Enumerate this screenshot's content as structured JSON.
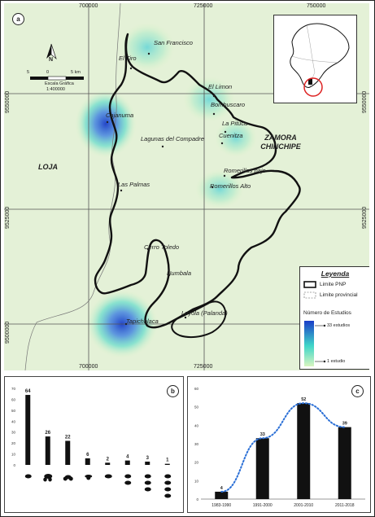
{
  "panel_labels": {
    "a": "a",
    "b": "b",
    "c": "c"
  },
  "map": {
    "x_ticks": [
      "700000",
      "725000",
      "750000"
    ],
    "y_ticks_left": [
      "9550000",
      "9525000",
      "9500000"
    ],
    "y_ticks_right": [
      "9550000",
      "9525000",
      "9500000"
    ],
    "scale": {
      "ticks": [
        "5",
        "0",
        "5 km"
      ],
      "title": "Escala Gráfica",
      "ratio": "1:400000"
    },
    "north_label": "N",
    "regions": [
      {
        "id": "loja",
        "label": "LOJA"
      },
      {
        "id": "zamora",
        "label": "ZAMORA CHINCHIPE"
      }
    ],
    "places": [
      {
        "id": "san-francisco",
        "label": "San Francisco"
      },
      {
        "id": "el-tiro",
        "label": "El Tiro"
      },
      {
        "id": "el-limon",
        "label": "El Limon"
      },
      {
        "id": "bombuscaro",
        "label": "Bombuscaro"
      },
      {
        "id": "cajanuma",
        "label": "Cajanuma"
      },
      {
        "id": "la-pituca",
        "label": "La Pituca"
      },
      {
        "id": "cuenitza",
        "label": "Cuenitza"
      },
      {
        "id": "lagunas",
        "label": "Lagunas del Compadre"
      },
      {
        "id": "romerillos-bajo",
        "label": "Romerillos bajo"
      },
      {
        "id": "romerillos-alto",
        "label": "Romerillos Alto"
      },
      {
        "id": "las-palmas",
        "label": "Las Palmas"
      },
      {
        "id": "cerro-toledo",
        "label": "Cerro Toledo"
      },
      {
        "id": "numbala",
        "label": "Numbala"
      },
      {
        "id": "loyola",
        "label": "Loyola (Palanda)"
      },
      {
        "id": "tapichalaca",
        "label": "Tapichalaca"
      }
    ],
    "hotspots": [
      {
        "place": "san-francisco",
        "intensity": 0.25
      },
      {
        "place": "bombuscaro",
        "intensity": 0.3
      },
      {
        "place": "cajanuma",
        "intensity": 0.55
      },
      {
        "place": "la-pituca",
        "intensity": 0.2
      },
      {
        "place": "romerillos-alto",
        "intensity": 0.2
      },
      {
        "place": "tapichalaca",
        "intensity": 1.0
      }
    ],
    "legend": {
      "title": "Leyenda",
      "items": [
        "Limite PNP",
        "Limite provincial"
      ],
      "gradient_title": "Número de Estudios",
      "gradient_max": "33 estudios",
      "gradient_min": "1 estudio",
      "colors": {
        "low": "#d8f5c0",
        "mid": "#40d6c8",
        "high": "#1a3dc8"
      }
    }
  },
  "chart_data": [
    {
      "type": "bar",
      "panel": "b",
      "categories": [
        "birds",
        "mammals",
        "amphibians",
        "reptiles",
        "fish",
        "mammals-amphibians",
        "birds-amphibians-reptiles",
        "mammals-birds-amphibians-reptiles"
      ],
      "values": [
        64,
        26,
        22,
        6,
        2,
        4,
        3,
        1
      ],
      "data_labels": [
        "64",
        "26",
        "22",
        "6",
        "2",
        "4",
        "3",
        "1"
      ],
      "y_ticks": [
        "0",
        "10",
        "20",
        "30",
        "40",
        "50",
        "60",
        "70"
      ],
      "ylim": [
        0,
        70
      ],
      "bar_color": "#111111"
    },
    {
      "type": "bar",
      "panel": "c",
      "categories": [
        "1983-1990",
        "1991-2000",
        "2001-2010",
        "2011-2018"
      ],
      "values": [
        4,
        33,
        52,
        39
      ],
      "data_labels": [
        "4",
        "33",
        "52",
        "39"
      ],
      "y_ticks": [
        "0",
        "10",
        "20",
        "30",
        "40",
        "50",
        "60"
      ],
      "ylim": [
        0,
        60
      ],
      "trend_line": "dotted polynomial",
      "bar_color": "#111111",
      "trend_color": "#2a6fd6"
    }
  ]
}
